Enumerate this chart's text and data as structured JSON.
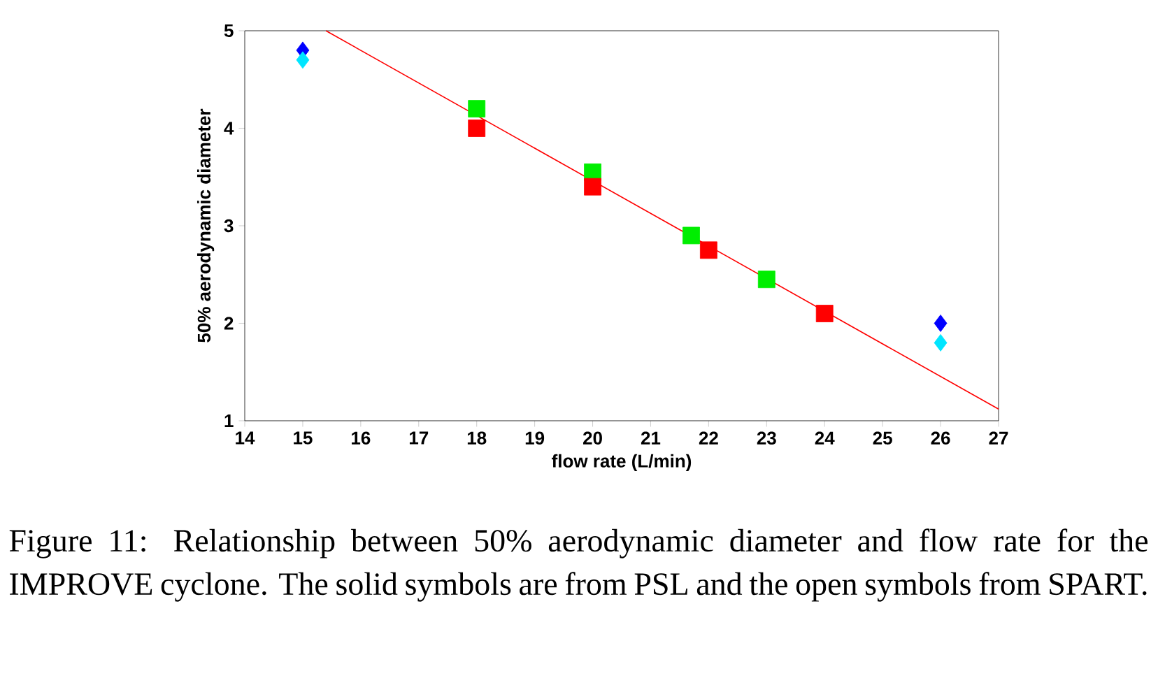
{
  "chart_data": {
    "type": "scatter",
    "xlabel": "flow rate (L/min)",
    "ylabel": "50% aerodynamic diameter",
    "xlim": [
      14,
      27
    ],
    "ylim": [
      1,
      5
    ],
    "xticks": [
      14,
      15,
      16,
      17,
      18,
      19,
      20,
      21,
      22,
      23,
      24,
      25,
      26,
      27
    ],
    "yticks": [
      1,
      2,
      3,
      4,
      5
    ],
    "series": [
      {
        "color": "#0000ff",
        "marker": "diamond",
        "x": [
          15,
          26
        ],
        "values": [
          4.8,
          2.0
        ]
      },
      {
        "color": "#00e5ff",
        "marker": "diamond",
        "x": [
          15,
          26
        ],
        "values": [
          4.7,
          1.8
        ]
      },
      {
        "color": "#00ee00",
        "marker": "square",
        "x": [
          18,
          20,
          21.7,
          23
        ],
        "values": [
          4.2,
          3.55,
          2.9,
          2.45
        ]
      },
      {
        "color": "#ff0000",
        "marker": "square",
        "x": [
          18,
          20,
          22,
          24
        ],
        "values": [
          4.0,
          3.4,
          2.75,
          2.1
        ]
      },
      {
        "type": "line",
        "color": "#ff0000",
        "x": [
          15.4,
          27
        ],
        "values": [
          5.0,
          1.12
        ]
      }
    ],
    "annotations": [
      "Figure 11:  Relationship between 50% aerodynamic diameter and flow rate for the IMPROVE cyclone.  The solid symbols are from PSL and the open symbols from SPART."
    ]
  }
}
